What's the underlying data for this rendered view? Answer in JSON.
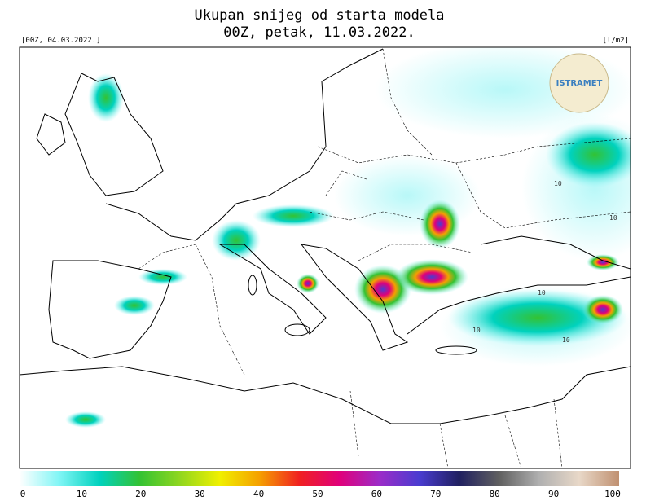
{
  "header": {
    "title": "Ukupan snijeg od starta modela",
    "subtitle": "00Z, petak, 11.03.2022.",
    "left_label": "[00Z, 04.03.2022.]",
    "right_label": "[l/m2]"
  },
  "logo": "ISTRAMET",
  "map": {
    "contour_labels": [
      10,
      10,
      10,
      10,
      10
    ]
  },
  "colorbar": {
    "min": 0,
    "max": 100,
    "ticks": [
      0,
      10,
      20,
      30,
      40,
      50,
      60,
      70,
      80,
      90,
      100
    ],
    "colors": [
      "#ffffff",
      "#7ff5f5",
      "#00d2be",
      "#33c233",
      "#8fd61f",
      "#f0f000",
      "#f5a000",
      "#f02020",
      "#e0007a",
      "#9c2cc8",
      "#4a3cd0",
      "#202060",
      "#606060",
      "#b0b0b0",
      "#e8d8c8",
      "#c09070"
    ]
  }
}
